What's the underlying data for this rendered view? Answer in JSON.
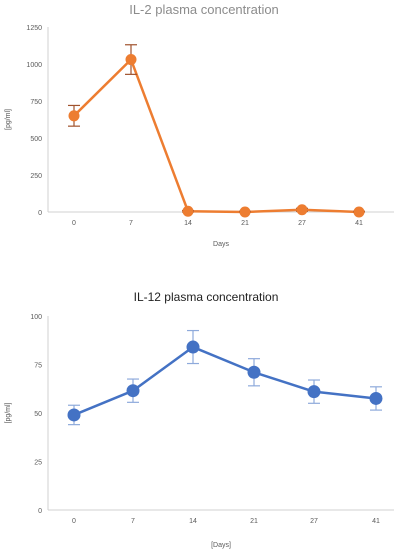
{
  "chart_data": [
    {
      "type": "line",
      "title": "IL-2 plasma concentration",
      "xlabel": "Days",
      "ylabel": "[pg/ml]",
      "categories": [
        "0",
        "7",
        "14",
        "21",
        "27",
        "41"
      ],
      "ylim": [
        0,
        1250
      ],
      "yticks": [
        "0",
        "250",
        "500",
        "750",
        "1000",
        "1250"
      ],
      "grid": false,
      "series": [
        {
          "values": [
            650,
            1030,
            5,
            0,
            15,
            0
          ],
          "error": [
            70,
            100,
            5,
            5,
            10,
            5
          ],
          "color": "#ed7d31",
          "error_color": "#a0522d"
        }
      ]
    },
    {
      "type": "line",
      "title": "IL-12 plasma concentration",
      "xlabel": "[Days]",
      "ylabel": "[pg/ml]",
      "categories": [
        "0",
        "7",
        "14",
        "21",
        "27",
        "41"
      ],
      "ylim": [
        0,
        100
      ],
      "yticks": [
        "0",
        "25",
        "50",
        "75",
        "100"
      ],
      "grid": false,
      "series": [
        {
          "values": [
            49,
            61.5,
            84,
            71,
            61,
            57.5
          ],
          "error": [
            5,
            6,
            8.5,
            7,
            6,
            6
          ],
          "color": "#4472c4",
          "error_color": "#8eaadb"
        }
      ]
    }
  ]
}
